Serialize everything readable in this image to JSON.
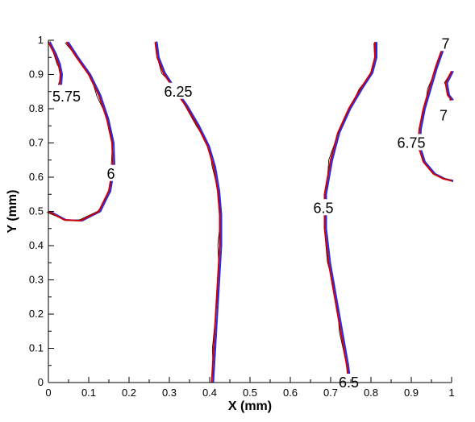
{
  "chart_data": {
    "type": "line",
    "title": "",
    "xlabel": "X (mm)",
    "ylabel": "Y (mm)",
    "xlim": [
      0,
      1
    ],
    "ylim": [
      0,
      1
    ],
    "x_ticks": [
      "0",
      "0.1",
      "0.2",
      "0.3",
      "0.4",
      "0.5",
      "0.6",
      "0.7",
      "0.8",
      "0.9",
      "1"
    ],
    "y_ticks": [
      "0",
      "0.1",
      "0.2",
      "0.3",
      "0.4",
      "0.5",
      "0.6",
      "0.7",
      "0.8",
      "0.9",
      "1"
    ],
    "grid": false,
    "legend": "none",
    "series_colors": [
      "#cc0000",
      "#2a2aee",
      "#000000"
    ],
    "contours": [
      {
        "points": [
          [
            0.0,
            0.995
          ],
          [
            0.015,
            0.96
          ],
          [
            0.025,
            0.93
          ],
          [
            0.03,
            0.9
          ],
          [
            0.028,
            0.87
          ]
        ],
        "labels": [
          {
            "text": "5.75",
            "x": 0.045,
            "y": 0.835
          }
        ]
      },
      {
        "points": [
          [
            0.045,
            0.995
          ],
          [
            0.07,
            0.95
          ],
          [
            0.1,
            0.9
          ],
          [
            0.125,
            0.84
          ],
          [
            0.145,
            0.77
          ],
          [
            0.158,
            0.7
          ],
          [
            0.16,
            0.63
          ],
          [
            0.15,
            0.56
          ],
          [
            0.125,
            0.5
          ],
          [
            0.08,
            0.473
          ],
          [
            0.04,
            0.475
          ],
          [
            0.0,
            0.5
          ]
        ],
        "labels": [
          {
            "text": "6",
            "x": 0.155,
            "y": 0.61
          }
        ]
      },
      {
        "points": [
          [
            0.265,
            0.995
          ],
          [
            0.27,
            0.95
          ],
          [
            0.285,
            0.905
          ],
          [
            0.31,
            0.86
          ],
          [
            0.34,
            0.81
          ],
          [
            0.37,
            0.75
          ],
          [
            0.395,
            0.69
          ],
          [
            0.41,
            0.63
          ],
          [
            0.42,
            0.56
          ],
          [
            0.425,
            0.49
          ],
          [
            0.425,
            0.4
          ],
          [
            0.42,
            0.3
          ],
          [
            0.415,
            0.2
          ],
          [
            0.41,
            0.1
          ],
          [
            0.405,
            0.0
          ]
        ],
        "labels": [
          {
            "text": "6.25",
            "x": 0.322,
            "y": 0.85
          }
        ]
      },
      {
        "points": [
          [
            0.81,
            0.995
          ],
          [
            0.81,
            0.95
          ],
          [
            0.8,
            0.905
          ],
          [
            0.775,
            0.86
          ],
          [
            0.745,
            0.8
          ],
          [
            0.718,
            0.73
          ],
          [
            0.7,
            0.65
          ],
          [
            0.685,
            0.55
          ],
          [
            0.685,
            0.45
          ],
          [
            0.695,
            0.35
          ],
          [
            0.71,
            0.25
          ],
          [
            0.725,
            0.15
          ],
          [
            0.74,
            0.05
          ],
          [
            0.745,
            0.0
          ]
        ],
        "labels": [
          {
            "text": "6.5",
            "x": 0.682,
            "y": 0.51
          },
          {
            "text": "6.5",
            "x": 0.745,
            "y": 0.0
          }
        ]
      },
      {
        "points": [
          [
            0.975,
            0.97
          ],
          [
            0.96,
            0.92
          ],
          [
            0.945,
            0.86
          ],
          [
            0.93,
            0.8
          ],
          [
            0.92,
            0.74
          ],
          [
            0.918,
            0.69
          ],
          [
            0.93,
            0.645
          ],
          [
            0.955,
            0.61
          ],
          [
            0.98,
            0.595
          ],
          [
            1.0,
            0.59
          ]
        ],
        "labels": [
          {
            "text": "6.75",
            "x": 0.9,
            "y": 0.7
          }
        ]
      },
      {
        "points": [
          [
            1.0,
            0.91
          ],
          [
            0.985,
            0.875
          ],
          [
            0.99,
            0.84
          ],
          [
            1.0,
            0.825
          ]
        ],
        "labels": [
          {
            "text": "7",
            "x": 0.98,
            "y": 0.78
          },
          {
            "text": "7",
            "x": 0.985,
            "y": 0.99
          }
        ]
      }
    ]
  }
}
